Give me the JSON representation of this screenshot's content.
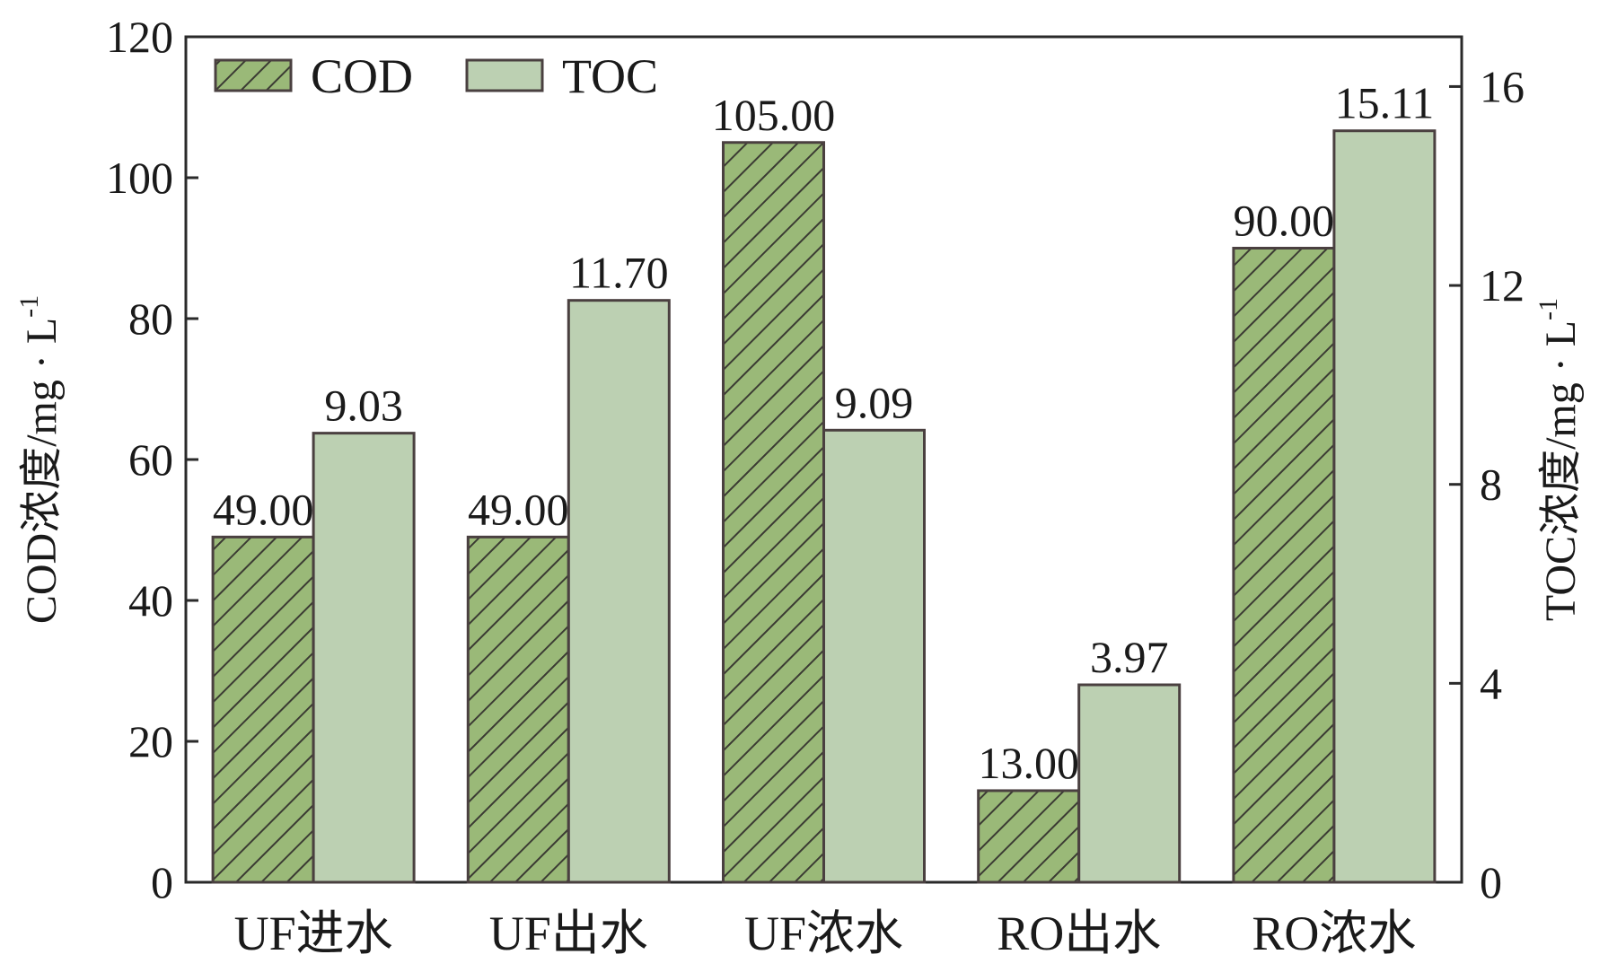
{
  "chart_data": {
    "type": "bar",
    "categories": [
      "UF进水",
      "UF出水",
      "UF浓水",
      "RO出水",
      "RO浓水"
    ],
    "series": [
      {
        "name": "COD",
        "axis": "left",
        "values": [
          49.0,
          49.0,
          105.0,
          13.0,
          90.0
        ],
        "labels": [
          "49.00",
          "49.00",
          "105.00",
          "13.00",
          "90.00"
        ],
        "color": "#9ab978",
        "pattern": "diagonal-hatch"
      },
      {
        "name": "TOC",
        "axis": "right",
        "values": [
          9.03,
          11.7,
          9.09,
          3.97,
          15.11
        ],
        "labels": [
          "9.03",
          "11.70",
          "9.09",
          "3.97",
          "15.11"
        ],
        "color": "#bcd0b2",
        "pattern": "solid"
      }
    ],
    "ylabel": "COD浓度/mg · L",
    "ylabel_sup": "-1",
    "y2label": "TOC浓度/mg · L",
    "y2label_sup": "-1",
    "ylim": [
      0,
      120
    ],
    "yticks": [
      0,
      20,
      40,
      60,
      80,
      100,
      120
    ],
    "y2lim": [
      0,
      17
    ],
    "y2ticks": [
      0,
      4,
      8,
      12,
      16
    ],
    "grid": false,
    "legend_position": "top-left",
    "edge_color": "#4a4040"
  }
}
